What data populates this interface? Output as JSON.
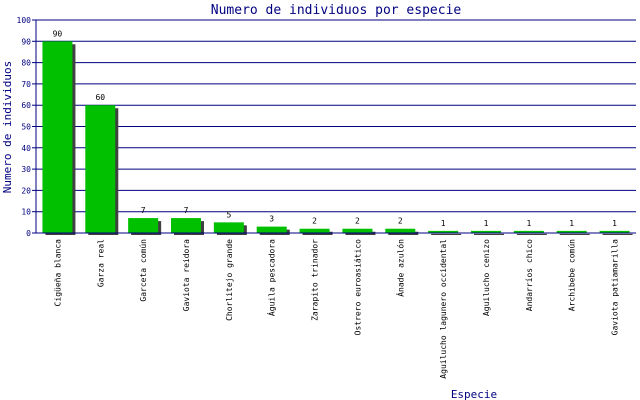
{
  "chart_data": {
    "type": "bar",
    "title": "Numero de individuos por especie",
    "xlabel": "Especie",
    "ylabel": "Numero de individuos",
    "ylim": [
      0,
      100
    ],
    "yticks": [
      0,
      10,
      20,
      30,
      40,
      50,
      60,
      70,
      80,
      90,
      100
    ],
    "grid": true,
    "categories": [
      "Cigüeña blanca",
      "Garza real",
      "Garceta común",
      "Gaviota reidora",
      "Chorlitejo grande",
      "Águila pescadora",
      "Zarapito trinador",
      "Ostrero euroasiático",
      "Ánade azulón",
      "Aguilucho lagunero occidental",
      "Aguilucho cenizo",
      "Andarríos chico",
      "Archibebe común",
      "Gaviota patiamarilla"
    ],
    "values": [
      90,
      60,
      7,
      7,
      5,
      3,
      2,
      2,
      2,
      1,
      1,
      1,
      1,
      1
    ],
    "colors": {
      "bar": "#00c000",
      "bar_shadow": "#404040",
      "grid": "#000080",
      "text": "#000080",
      "label": "#000000"
    }
  }
}
